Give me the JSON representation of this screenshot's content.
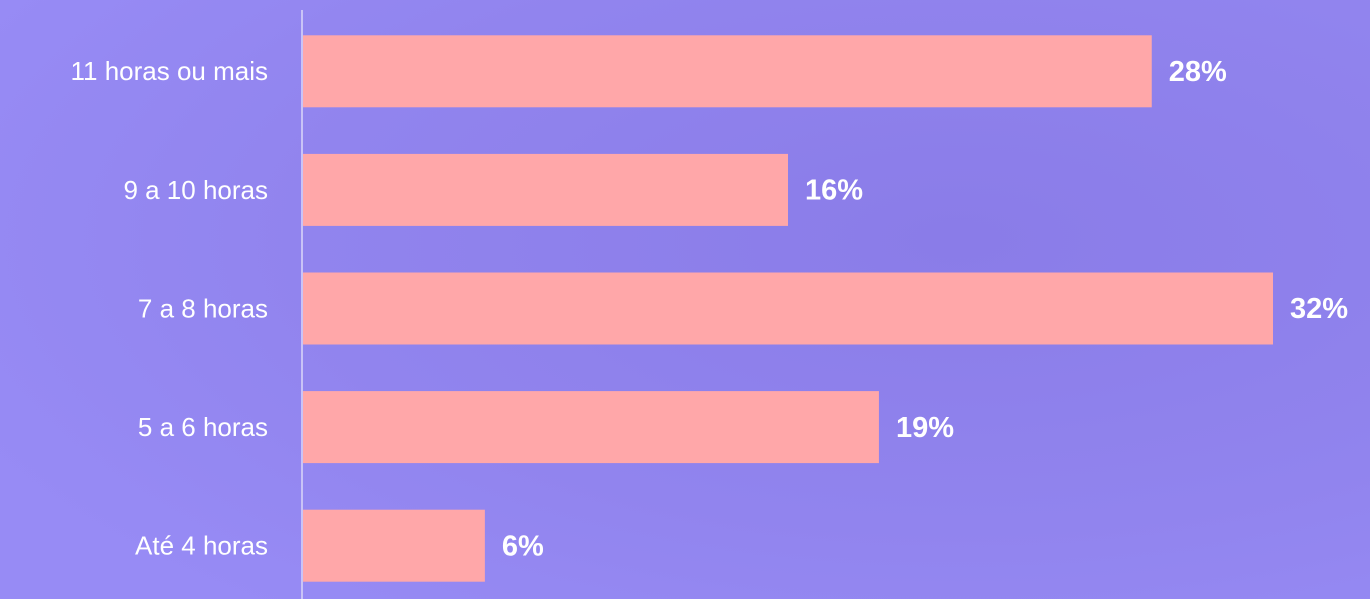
{
  "chart_data": {
    "type": "bar",
    "orientation": "horizontal",
    "categories": [
      "11 horas ou mais",
      "9 a 10 horas",
      "7 a 8 horas",
      "5 a 6 horas",
      "Até 4 horas"
    ],
    "values": [
      28,
      16,
      32,
      19,
      6
    ],
    "value_labels": [
      "28%",
      "16%",
      "32%",
      "19%",
      "6%"
    ],
    "color": "#ffa7a9"
  }
}
